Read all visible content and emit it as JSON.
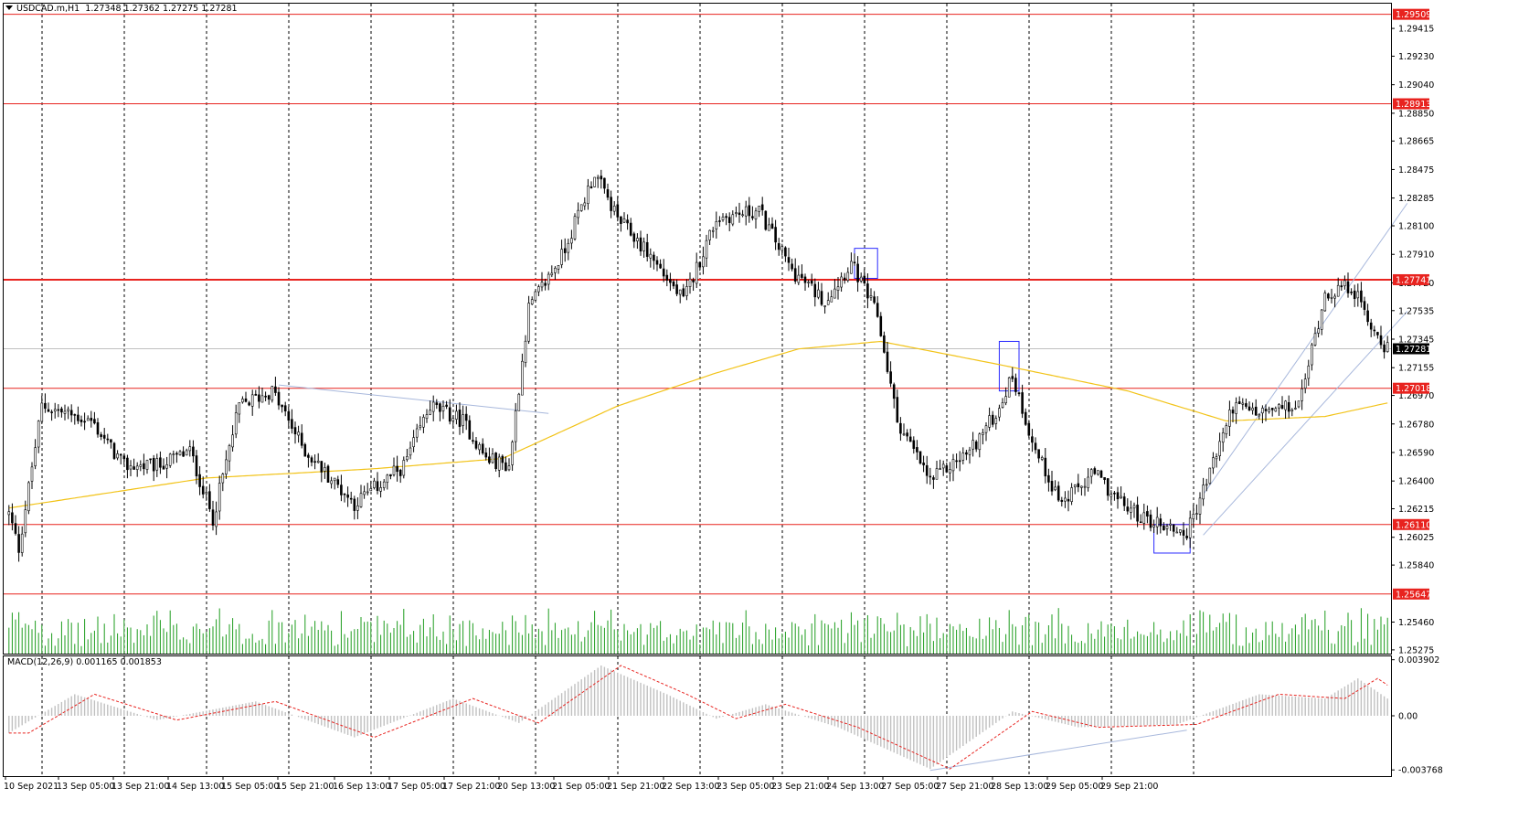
{
  "header": {
    "symbol": "USDCAD.m,H1",
    "open": "1.27348",
    "high": "1.27362",
    "low": "1.27275",
    "close": "1.27281"
  },
  "macd": {
    "title": "MACD(12,26,9)",
    "value1": "0.001165",
    "value2": "0.001853",
    "ticks": [
      "0.003902",
      "0.00",
      "-0.003768"
    ]
  },
  "price_axis": {
    "ticks": [
      "1.29415",
      "1.29230",
      "1.29040",
      "1.28850",
      "1.28665",
      "1.28475",
      "1.28285",
      "1.28100",
      "1.27910",
      "1.27720",
      "1.27535",
      "1.27345",
      "1.27155",
      "1.26970",
      "1.26780",
      "1.26590",
      "1.26400",
      "1.26215",
      "1.26025",
      "1.25840",
      "1.25460",
      "1.25275"
    ],
    "current_price": "1.27281",
    "levels": [
      "1.29509",
      "1.28913",
      "1.27741",
      "1.27018",
      "1.26110",
      "1.25647"
    ]
  },
  "time_axis": {
    "labels": [
      "10 Sep 2021",
      "13 Sep 05:00",
      "13 Sep 21:00",
      "14 Sep 13:00",
      "15 Sep 05:00",
      "15 Sep 21:00",
      "16 Sep 13:00",
      "17 Sep 05:00",
      "17 Sep 21:00",
      "20 Sep 13:00",
      "21 Sep 05:00",
      "21 Sep 21:00",
      "22 Sep 13:00",
      "23 Sep 05:00",
      "23 Sep 21:00",
      "24 Sep 13:00",
      "27 Sep 05:00",
      "27 Sep 21:00",
      "28 Sep 13:00",
      "29 Sep 05:00",
      "29 Sep 21:00"
    ]
  },
  "colors": {
    "bull_candle": "#ffffff",
    "bear_candle": "#000000",
    "level_line": "#e8231f",
    "ma_line": "#f2c318",
    "volume": "#1e9c1e",
    "macd_hist": "#c0c0c0",
    "macd_signal": "#e8231f",
    "grid": "#000000",
    "channel": "#a8b8dc",
    "box": "#2a2aff"
  },
  "chart_data": {
    "type": "candlestick",
    "symbol": "USDCAD.m",
    "timeframe": "H1",
    "ylim": [
      1.2525,
      1.2958
    ],
    "horizontal_levels": [
      1.29509,
      1.28913,
      1.27741,
      1.27018,
      1.2611,
      1.25647
    ],
    "current_price": 1.27281,
    "close_series_keypoints": [
      [
        0,
        1.2618
      ],
      [
        3,
        1.2595
      ],
      [
        10,
        1.269
      ],
      [
        25,
        1.268
      ],
      [
        35,
        1.265
      ],
      [
        45,
        1.265
      ],
      [
        55,
        1.266
      ],
      [
        62,
        1.2615
      ],
      [
        70,
        1.269
      ],
      [
        80,
        1.27
      ],
      [
        90,
        1.266
      ],
      [
        105,
        1.2625
      ],
      [
        120,
        1.265
      ],
      [
        128,
        1.269
      ],
      [
        138,
        1.268
      ],
      [
        145,
        1.2655
      ],
      [
        152,
        1.265
      ],
      [
        158,
        1.2755
      ],
      [
        168,
        1.279
      ],
      [
        178,
        1.2845
      ],
      [
        185,
        1.2815
      ],
      [
        195,
        1.279
      ],
      [
        205,
        1.276
      ],
      [
        215,
        1.2815
      ],
      [
        228,
        1.282
      ],
      [
        238,
        1.278
      ],
      [
        248,
        1.276
      ],
      [
        256,
        1.2785
      ],
      [
        264,
        1.275
      ],
      [
        270,
        1.268
      ],
      [
        280,
        1.264
      ],
      [
        292,
        1.266
      ],
      [
        300,
        1.2685
      ],
      [
        305,
        1.271
      ],
      [
        312,
        1.266
      ],
      [
        320,
        1.2625
      ],
      [
        330,
        1.2645
      ],
      [
        338,
        1.2625
      ],
      [
        345,
        1.2615
      ],
      [
        352,
        1.261
      ],
      [
        358,
        1.2605
      ],
      [
        364,
        1.264
      ],
      [
        372,
        1.269
      ],
      [
        380,
        1.2685
      ],
      [
        392,
        1.269
      ],
      [
        400,
        1.2765
      ],
      [
        408,
        1.277
      ],
      [
        415,
        1.274
      ],
      [
        419,
        1.2728
      ]
    ],
    "ma_keypoints": [
      [
        0,
        1.2622
      ],
      [
        60,
        1.2642
      ],
      [
        110,
        1.2648
      ],
      [
        150,
        1.2655
      ],
      [
        185,
        1.269
      ],
      [
        215,
        1.2712
      ],
      [
        240,
        1.2728
      ],
      [
        265,
        1.2733
      ],
      [
        300,
        1.2718
      ],
      [
        340,
        1.27
      ],
      [
        370,
        1.268
      ],
      [
        400,
        1.2683
      ],
      [
        419,
        1.2692
      ]
    ],
    "macd_keypoints": [
      [
        0,
        -0.0012
      ],
      [
        20,
        0.0015
      ],
      [
        45,
        -0.0003
      ],
      [
        75,
        0.001
      ],
      [
        105,
        -0.0015
      ],
      [
        135,
        0.0012
      ],
      [
        155,
        -0.0005
      ],
      [
        180,
        0.0035
      ],
      [
        200,
        0.0015
      ],
      [
        215,
        -0.0002
      ],
      [
        230,
        0.0008
      ],
      [
        252,
        -0.0008
      ],
      [
        280,
        -0.0037
      ],
      [
        305,
        0.0003
      ],
      [
        325,
        -0.0008
      ],
      [
        355,
        -0.0006
      ],
      [
        380,
        0.0015
      ],
      [
        400,
        0.0012
      ],
      [
        410,
        0.0026
      ],
      [
        419,
        0.0012
      ]
    ],
    "markup": {
      "boxes": [
        "resistance-retest-box",
        "peak-box",
        "low-box"
      ],
      "channel": "rising-channel",
      "trendlines": [
        "upper-left-trendline",
        "macd-divergence-line"
      ]
    }
  }
}
